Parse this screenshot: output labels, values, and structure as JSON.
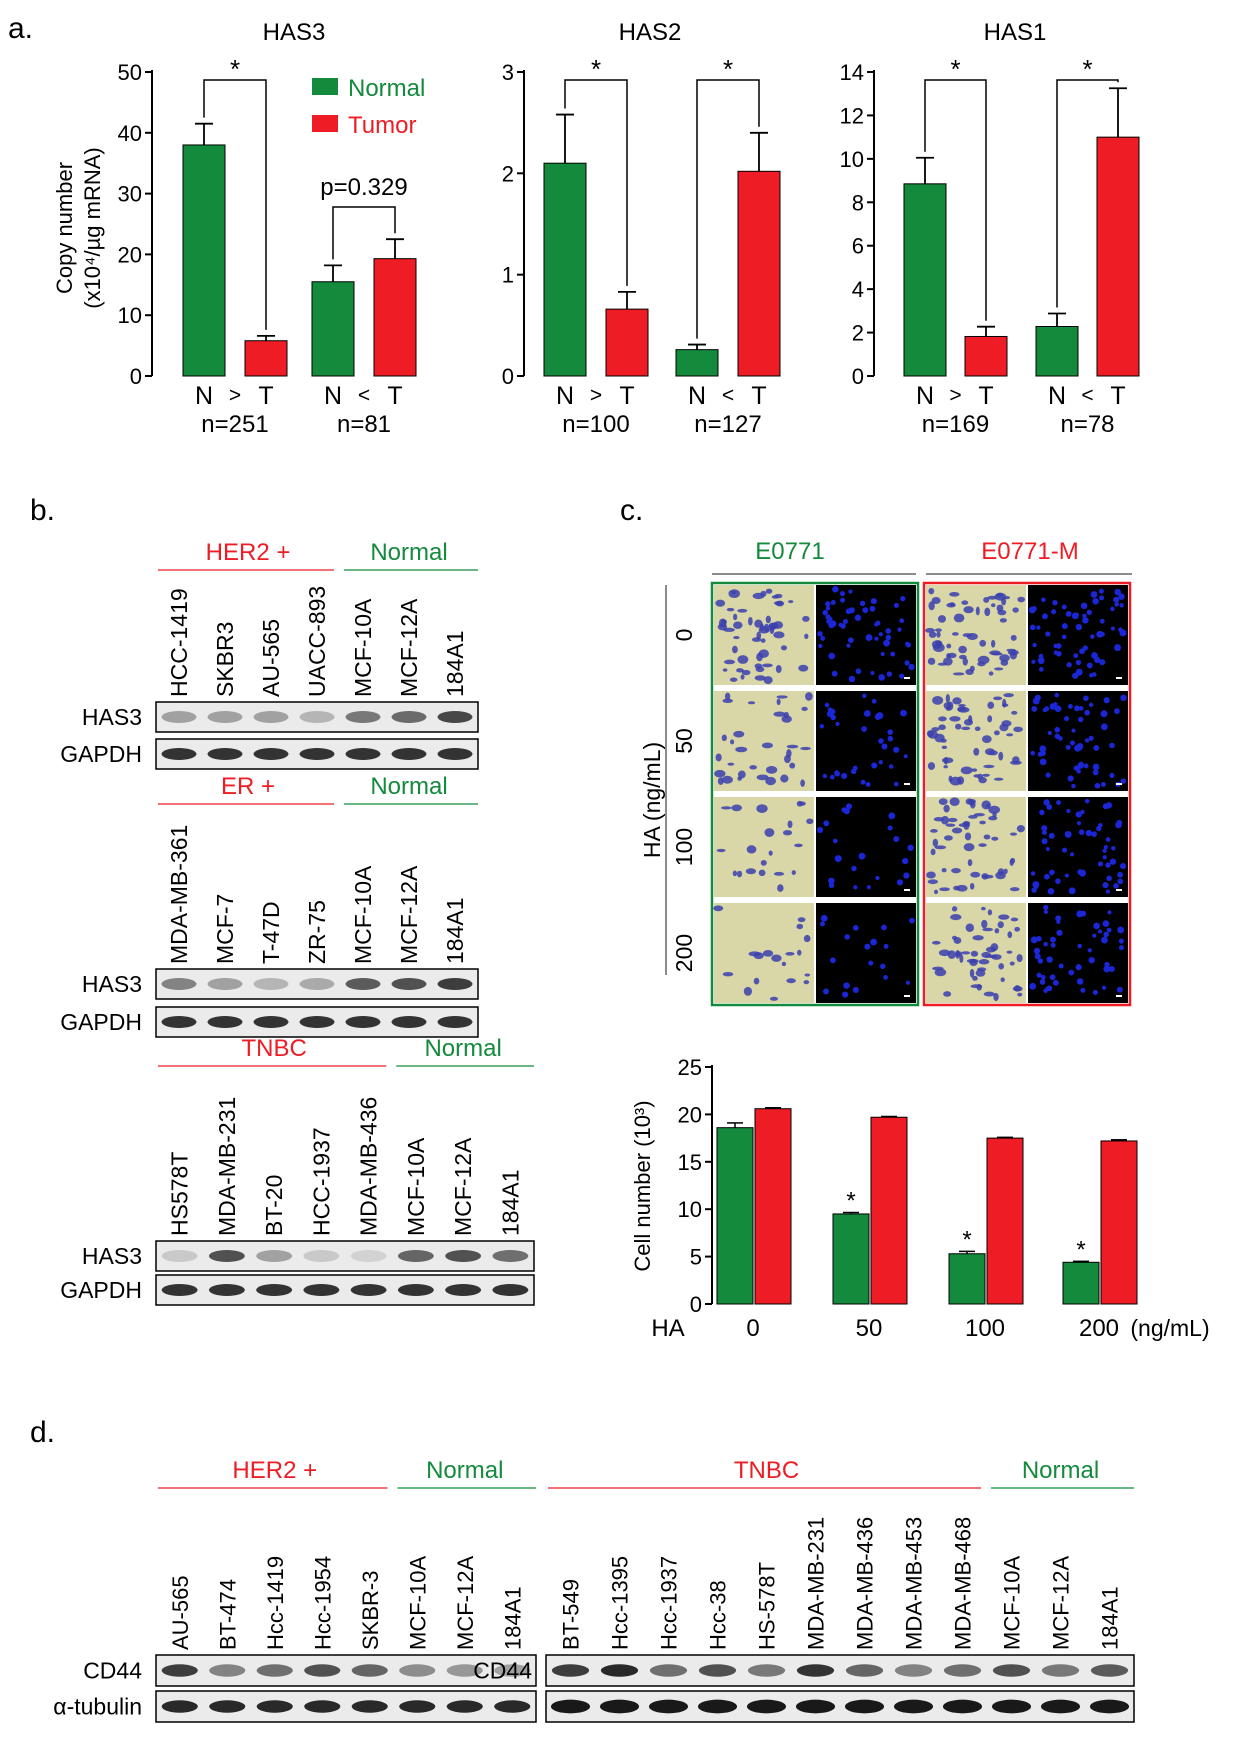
{
  "colors": {
    "normal": "#138a3c",
    "tumor": "#ee1c25",
    "blot_bg": "#ebebeb",
    "cell_field": "#d9d7a8",
    "fluor_bg": "#000000",
    "fluor_cells": "#1b27d6"
  },
  "panel_a": {
    "label": "a.",
    "ylabel_line1": "Copy number",
    "ylabel_line2": "(x10⁴/µg mRNA)",
    "legend": {
      "normal": "Normal",
      "tumor": "Tumor"
    }
  },
  "panel_b": {
    "label": "b."
  },
  "panel_c": {
    "label": "c.",
    "col_left": "E0771",
    "col_right": "E0771-M",
    "y_axis_title": "HA (ng/mL)",
    "row_labels": [
      "0",
      "50",
      "100",
      "200"
    ]
  },
  "panel_d": {
    "label": "d."
  },
  "chart_data": [
    {
      "type": "bar",
      "title": "HAS3",
      "ylabel": "Copy number (x10⁴/µg mRNA)",
      "ylim": [
        0,
        50
      ],
      "yticks": [
        "0",
        "10",
        "20",
        "30",
        "40",
        "50"
      ],
      "groups": [
        {
          "comparison": "N > T",
          "n": "n=251",
          "normal": 38,
          "normal_err": 3.5,
          "tumor": 5.8,
          "tumor_err": 0.8,
          "annotation": "*"
        },
        {
          "comparison": "N < T",
          "n": "n=81",
          "normal": 15.5,
          "normal_err": 2.7,
          "tumor": 19.3,
          "tumor_err": 3.2,
          "annotation": "p=0.329"
        }
      ],
      "series": [
        {
          "name": "Normal"
        },
        {
          "name": "Tumor"
        }
      ]
    },
    {
      "type": "bar",
      "title": "HAS2",
      "ylim": [
        0,
        3
      ],
      "yticks": [
        "0",
        "1",
        "2",
        "3"
      ],
      "groups": [
        {
          "comparison": "N > T",
          "n": "n=100",
          "normal": 2.1,
          "normal_err": 0.48,
          "tumor": 0.66,
          "tumor_err": 0.17,
          "annotation": "*"
        },
        {
          "comparison": "N < T",
          "n": "n=127",
          "normal": 0.26,
          "normal_err": 0.05,
          "tumor": 2.02,
          "tumor_err": 0.38,
          "annotation": "*"
        }
      ],
      "series": [
        {
          "name": "Normal"
        },
        {
          "name": "Tumor"
        }
      ]
    },
    {
      "type": "bar",
      "title": "HAS1",
      "ylim": [
        0,
        14
      ],
      "yticks": [
        "0",
        "2",
        "4",
        "6",
        "8",
        "10",
        "12",
        "14"
      ],
      "groups": [
        {
          "comparison": "N > T",
          "n": "n=169",
          "normal": 8.85,
          "normal_err": 1.2,
          "tumor": 1.82,
          "tumor_err": 0.45,
          "annotation": "*"
        },
        {
          "comparison": "N < T",
          "n": "n=78",
          "normal": 2.28,
          "normal_err": 0.6,
          "tumor": 11.0,
          "tumor_err": 2.25,
          "annotation": "*"
        }
      ],
      "series": [
        {
          "name": "Normal"
        },
        {
          "name": "Tumor"
        }
      ]
    },
    {
      "type": "bar",
      "title": "",
      "ylabel": "Cell number (10³)",
      "xlabel_prefix": "HA",
      "x_unit": "(ng/mL)",
      "ylim": [
        0,
        25
      ],
      "yticks": [
        "0",
        "5",
        "10",
        "15",
        "20",
        "25"
      ],
      "categories": [
        "0",
        "50",
        "100",
        "200"
      ],
      "series": [
        {
          "name": "E0771",
          "values": [
            18.6,
            9.5,
            5.3,
            4.4
          ],
          "errors": [
            0.5,
            0.15,
            0.25,
            0.1
          ],
          "stars": [
            "",
            "*",
            "*",
            "*"
          ]
        },
        {
          "name": "E0771-M",
          "values": [
            20.6,
            19.7,
            17.5,
            17.2
          ],
          "errors": [
            0.1,
            0.08,
            0.08,
            0.12
          ]
        }
      ]
    }
  ],
  "blots": {
    "b1": {
      "group_left": "HER2 +",
      "group_right": "Normal",
      "lanes": [
        "HCC-1419",
        "SKBR3",
        "AU-565",
        "UACC-893",
        "MCF-10A",
        "MCF-12A",
        "184A1"
      ],
      "rows": [
        {
          "name": "HAS3",
          "intensity": [
            0.35,
            0.35,
            0.35,
            0.25,
            0.55,
            0.62,
            0.8
          ]
        },
        {
          "name": "GAPDH",
          "intensity": [
            0.9,
            0.9,
            0.9,
            0.9,
            0.9,
            0.9,
            0.9
          ]
        }
      ]
    },
    "b2": {
      "group_left": "ER +",
      "group_right": "Normal",
      "lanes": [
        "MDA-MB-361",
        "MCF-7",
        "T-47D",
        "ZR-75",
        "MCF-10A",
        "MCF-12A",
        "184A1"
      ],
      "rows": [
        {
          "name": "HAS3",
          "intensity": [
            0.5,
            0.35,
            0.25,
            0.3,
            0.7,
            0.75,
            0.85
          ]
        },
        {
          "name": "GAPDH",
          "intensity": [
            0.9,
            0.9,
            0.9,
            0.9,
            0.9,
            0.9,
            0.9
          ]
        }
      ]
    },
    "b3": {
      "group_left": "TNBC",
      "group_right": "Normal",
      "lanes": [
        "HS578T",
        "MDA-MB-231",
        "BT-20",
        "HCC-1937",
        "MDA-MB-436",
        "MCF-10A",
        "MCF-12A",
        "184A1"
      ],
      "rows": [
        {
          "name": "HAS3",
          "intensity": [
            0.15,
            0.75,
            0.35,
            0.15,
            0.1,
            0.65,
            0.75,
            0.6
          ]
        },
        {
          "name": "GAPDH",
          "intensity": [
            0.9,
            0.9,
            0.9,
            0.9,
            0.9,
            0.9,
            0.9,
            0.9
          ]
        }
      ]
    },
    "d_left": {
      "group_left": "HER2 +",
      "group_right": "Normal",
      "lanes": [
        "AU-565",
        "BT-474",
        "Hcc-1419",
        "Hcc-1954",
        "SKBR-3",
        "MCF-10A",
        "MCF-12A",
        "184A1"
      ],
      "rows": [
        {
          "name": "CD44",
          "intensity": [
            0.85,
            0.5,
            0.6,
            0.75,
            0.65,
            0.45,
            0.4,
            0.35
          ]
        },
        {
          "name": "α-tubulin",
          "intensity": [
            0.95,
            0.95,
            0.95,
            0.95,
            0.95,
            0.95,
            0.95,
            0.95
          ]
        }
      ]
    },
    "d_right": {
      "group_left": "TNBC",
      "group_right": "Normal",
      "lanes": [
        "BT-549",
        "Hcc-1395",
        "Hcc-1937",
        "Hcc-38",
        "HS-578T",
        "MDA-MB-231",
        "MDA-MB-436",
        "MDA-MB-453",
        "MDA-MB-468",
        "MCF-10A",
        "MCF-12A",
        "184A1"
      ],
      "rows": [
        {
          "name": "CD44",
          "intensity": [
            0.85,
            0.95,
            0.6,
            0.75,
            0.55,
            0.9,
            0.65,
            0.5,
            0.6,
            0.75,
            0.55,
            0.7
          ]
        }
      ]
    }
  }
}
